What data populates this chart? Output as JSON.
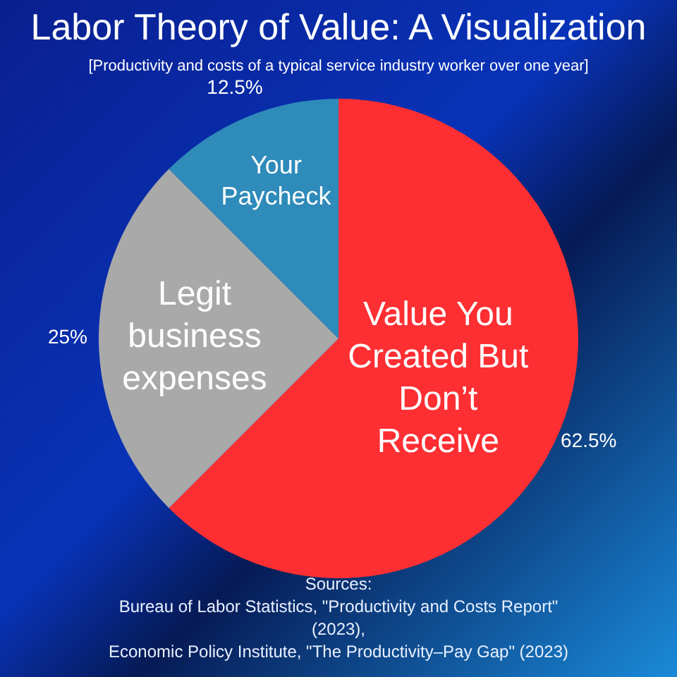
{
  "chart_data": {
    "type": "pie",
    "title": "Labor Theory of Value: A Visualization",
    "subtitle": "[Productivity and costs of a typical service industry worker over one year]",
    "categories": [
      "Value You Created But Don’t Receive",
      "Legit business expenses",
      "Your Paycheck"
    ],
    "values": [
      62.5,
      25,
      12.5
    ],
    "colors": [
      "#fd2f33",
      "#a9a9a9",
      "#2e8bba"
    ],
    "value_labels": [
      "62.5%",
      "25%",
      "12.5%"
    ],
    "annotations": [
      "Sources:",
      "Bureau of Labor Statistics, \"Productivity and Costs Report\" (2023),",
      "Economic Policy Institute, \"The Productivity–Pay Gap\" (2023)"
    ]
  }
}
